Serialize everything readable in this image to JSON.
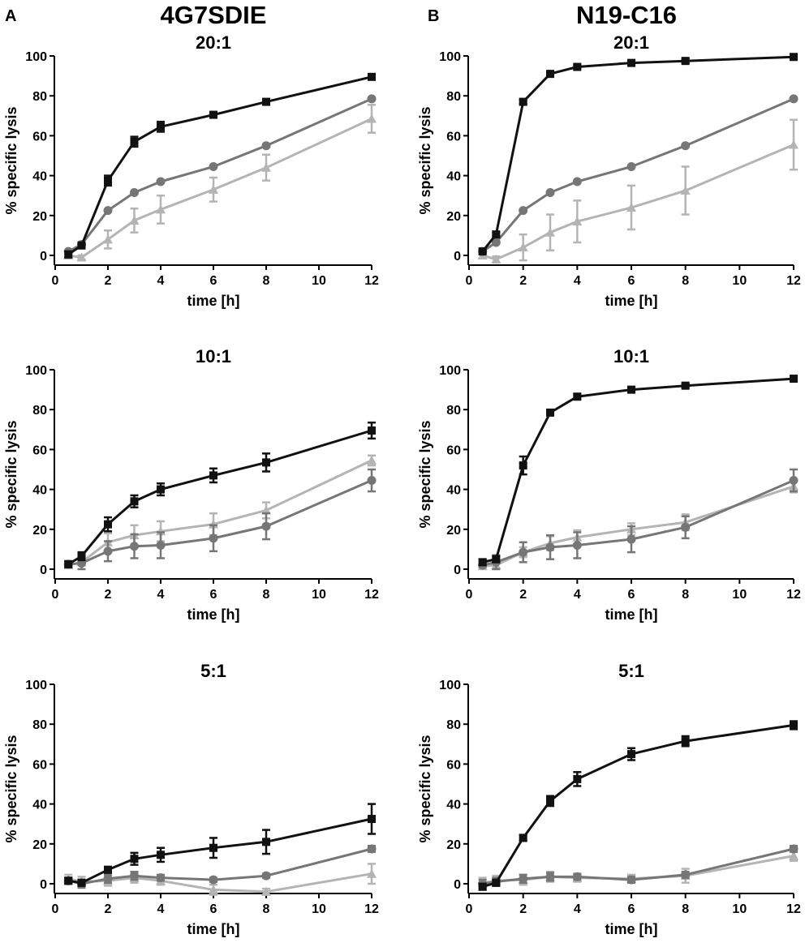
{
  "panels": [
    {
      "letter": "A",
      "title": "4G7SDIE"
    },
    {
      "letter": "B",
      "title": "N19-C16"
    }
  ],
  "series_colors": [
    "#111111",
    "#767676",
    "#b4b4b4"
  ],
  "chart_data": [
    {
      "type": "line",
      "panel": "A",
      "title": "20:1",
      "xlabel": "time [h]",
      "ylabel": "% specific lysis",
      "xlim": [
        0,
        12
      ],
      "ylim": [
        0,
        100
      ],
      "xticks": [
        0,
        2,
        4,
        6,
        8,
        10,
        12
      ],
      "yticks": [
        0,
        20,
        40,
        60,
        80,
        100
      ],
      "x": [
        0.5,
        1,
        2,
        3,
        4,
        6,
        8,
        12
      ],
      "series": [
        {
          "name": "black squares",
          "marker": "square",
          "values": [
            0.5,
            5,
            37.5,
            57,
            64.5,
            70.5,
            77,
            89.5
          ],
          "errors": [
            1.5,
            1.5,
            2.5,
            2.5,
            2.5,
            1,
            1,
            1
          ]
        },
        {
          "name": "dark grey circles",
          "marker": "circle",
          "values": [
            2,
            5.5,
            22.5,
            31.5,
            37,
            44.5,
            55,
            78.5
          ],
          "errors": [
            0.5,
            0.5,
            0.5,
            0.5,
            0.5,
            0.5,
            0.5,
            0.5
          ]
        },
        {
          "name": "light grey triangles",
          "marker": "triangle",
          "values": [
            0,
            -1,
            8,
            17.5,
            23,
            33,
            44,
            68.5
          ],
          "errors": [
            1,
            1,
            4.5,
            6,
            7,
            6,
            6.5,
            7
          ]
        }
      ]
    },
    {
      "type": "line",
      "panel": "B",
      "title": "20:1",
      "xlabel": "time [h]",
      "ylabel": "% specific lysis",
      "xlim": [
        0,
        12
      ],
      "ylim": [
        0,
        100
      ],
      "xticks": [
        0,
        2,
        4,
        6,
        8,
        10,
        12
      ],
      "yticks": [
        0,
        20,
        40,
        60,
        80,
        100
      ],
      "x": [
        0.5,
        1,
        2,
        3,
        4,
        6,
        8,
        12
      ],
      "series": [
        {
          "name": "black squares",
          "marker": "square",
          "values": [
            2,
            10.5,
            77,
            91,
            94.5,
            96.5,
            97.5,
            99.5
          ],
          "errors": [
            1,
            1,
            1,
            1,
            1,
            1,
            1,
            1
          ]
        },
        {
          "name": "dark grey circles",
          "marker": "circle",
          "values": [
            2,
            6.5,
            22.5,
            31.5,
            37,
            44.5,
            55,
            78.5
          ],
          "errors": [
            0.5,
            0.5,
            0.5,
            0.5,
            0.5,
            0.5,
            0.5,
            0.5
          ]
        },
        {
          "name": "light grey triangles",
          "marker": "triangle",
          "values": [
            0,
            -2,
            4,
            11.5,
            17,
            24,
            32.5,
            55.5
          ],
          "errors": [
            1.5,
            1.5,
            6.5,
            9,
            10.5,
            11,
            12,
            12.5
          ]
        }
      ]
    },
    {
      "type": "line",
      "panel": "A",
      "title": "10:1",
      "xlabel": "time [h]",
      "ylabel": "% specific lysis",
      "xlim": [
        0,
        12
      ],
      "ylim": [
        0,
        100
      ],
      "xticks": [
        0,
        2,
        4,
        6,
        8,
        10,
        12
      ],
      "yticks": [
        0,
        20,
        40,
        60,
        80,
        100
      ],
      "x": [
        0.5,
        1,
        2,
        3,
        4,
        6,
        8,
        12
      ],
      "series": [
        {
          "name": "black squares",
          "marker": "square",
          "values": [
            2.5,
            6.5,
            22.5,
            34,
            40,
            47,
            53.5,
            69.5
          ],
          "errors": [
            1.5,
            2,
            3.5,
            3,
            3,
            3.5,
            4.5,
            4
          ]
        },
        {
          "name": "dark grey circles",
          "marker": "circle",
          "values": [
            2.5,
            3,
            9,
            11.5,
            12,
            15.5,
            21.5,
            44.5
          ],
          "errors": [
            1.5,
            3,
            5,
            6,
            6.5,
            6.5,
            6.5,
            5.5
          ]
        },
        {
          "name": "light grey triangles",
          "marker": "triangle",
          "values": [
            2,
            3.5,
            13.5,
            17,
            19,
            22.5,
            29.5,
            54.5
          ],
          "errors": [
            1,
            1.5,
            4.5,
            5,
            5,
            5.5,
            4,
            2.5
          ]
        }
      ]
    },
    {
      "type": "line",
      "panel": "B",
      "title": "10:1",
      "xlabel": "time [h]",
      "ylabel": "% specific lysis",
      "xlim": [
        0,
        12
      ],
      "ylim": [
        0,
        100
      ],
      "xticks": [
        0,
        2,
        4,
        6,
        8,
        10,
        12
      ],
      "yticks": [
        0,
        20,
        40,
        60,
        80,
        100
      ],
      "x": [
        0.5,
        1,
        2,
        3,
        4,
        6,
        8,
        12
      ],
      "series": [
        {
          "name": "black squares",
          "marker": "square",
          "values": [
            3.5,
            5,
            52,
            78.5,
            86.5,
            90,
            92,
            95.5
          ],
          "errors": [
            1.5,
            1.5,
            4.5,
            1,
            1,
            1,
            1,
            1
          ]
        },
        {
          "name": "dark grey circles",
          "marker": "circle",
          "values": [
            2,
            3.5,
            8.5,
            11,
            12,
            15,
            21,
            44.5
          ],
          "errors": [
            1,
            3.5,
            5,
            6,
            6.5,
            6.5,
            5.5,
            5.5
          ]
        },
        {
          "name": "light grey triangles",
          "marker": "triangle",
          "values": [
            1.5,
            2,
            8.5,
            13,
            16,
            20,
            23.5,
            41.5
          ],
          "errors": [
            1,
            1.5,
            2.5,
            3.5,
            3.5,
            3,
            4,
            3
          ]
        }
      ]
    },
    {
      "type": "line",
      "panel": "A",
      "title": "5:1",
      "xlabel": "time [h]",
      "ylabel": "% specific lysis",
      "xlim": [
        0,
        12
      ],
      "ylim": [
        0,
        100
      ],
      "xticks": [
        0,
        2,
        4,
        6,
        8,
        10,
        12
      ],
      "yticks": [
        0,
        20,
        40,
        60,
        80,
        100
      ],
      "x": [
        0.5,
        1,
        2,
        3,
        4,
        6,
        8,
        12
      ],
      "series": [
        {
          "name": "black squares",
          "marker": "square",
          "values": [
            1.5,
            0.5,
            7,
            12.5,
            14.5,
            18,
            21,
            32.5
          ],
          "errors": [
            1.5,
            1.5,
            1.5,
            3,
            3.5,
            5,
            6,
            7.5
          ]
        },
        {
          "name": "dark grey circles",
          "marker": "circle",
          "values": [
            1.5,
            0,
            2.5,
            4,
            3,
            2,
            4,
            17.5
          ],
          "errors": [
            1.5,
            2,
            2,
            2,
            1.5,
            1,
            1,
            1.5
          ]
        },
        {
          "name": "light grey triangles",
          "marker": "triangle",
          "values": [
            2.5,
            1,
            1.5,
            3,
            1.5,
            -3,
            -4,
            5
          ],
          "errors": [
            2,
            2.5,
            2.5,
            2.5,
            2,
            2.5,
            1.5,
            5
          ]
        }
      ]
    },
    {
      "type": "line",
      "panel": "B",
      "title": "5:1",
      "xlabel": "time [h]",
      "ylabel": "% specific lysis",
      "xlim": [
        0,
        12
      ],
      "ylim": [
        0,
        100
      ],
      "xticks": [
        0,
        2,
        4,
        6,
        8,
        10,
        12
      ],
      "yticks": [
        0,
        20,
        40,
        60,
        80,
        100
      ],
      "x": [
        0.5,
        1,
        2,
        3,
        4,
        6,
        8,
        12
      ],
      "series": [
        {
          "name": "black squares",
          "marker": "square",
          "values": [
            -1.5,
            0.5,
            23,
            41.5,
            52.5,
            65,
            71.5,
            79.5
          ],
          "errors": [
            1.5,
            1.5,
            1.5,
            2.5,
            3.5,
            3,
            2.5,
            2
          ]
        },
        {
          "name": "dark grey circles",
          "marker": "circle",
          "values": [
            0,
            1,
            2.5,
            3.5,
            3.5,
            2,
            4.5,
            17.5
          ],
          "errors": [
            2,
            2,
            2,
            2,
            1.5,
            1.5,
            1.5,
            1.5
          ]
        },
        {
          "name": "light grey triangles",
          "marker": "triangle",
          "values": [
            0.5,
            1.5,
            2,
            3.5,
            3,
            2.5,
            4,
            14
          ],
          "errors": [
            2.5,
            2.5,
            2.5,
            2.5,
            2,
            2,
            3.5,
            2.5
          ]
        }
      ]
    }
  ]
}
